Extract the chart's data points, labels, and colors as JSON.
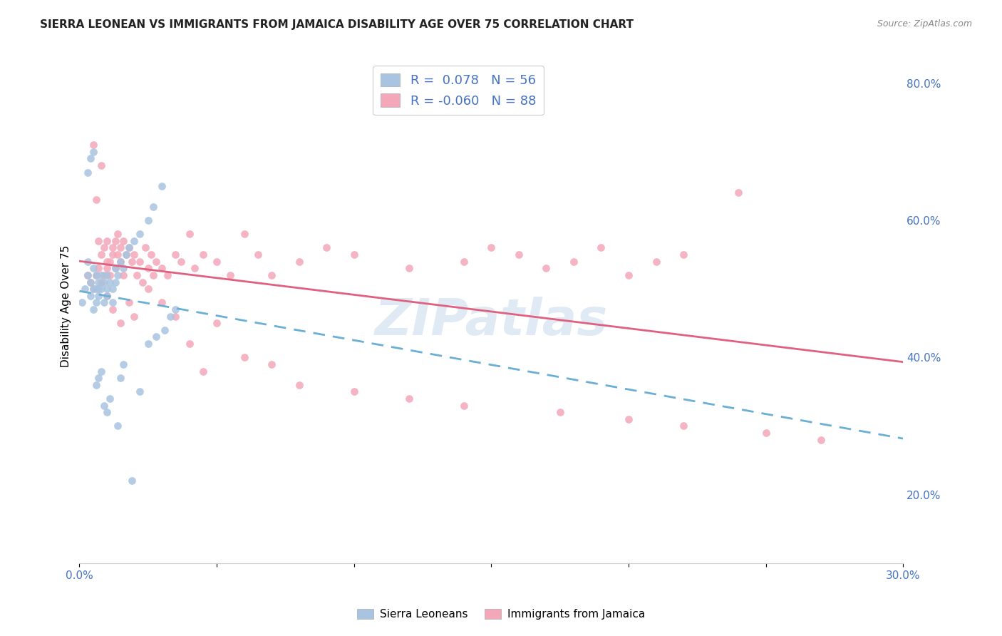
{
  "title": "SIERRA LEONEAN VS IMMIGRANTS FROM JAMAICA DISABILITY AGE OVER 75 CORRELATION CHART",
  "source": "Source: ZipAtlas.com",
  "ylabel": "Disability Age Over 75",
  "right_yticks": [
    "80.0%",
    "60.0%",
    "40.0%",
    "20.0%"
  ],
  "right_ytick_vals": [
    0.8,
    0.6,
    0.4,
    0.2
  ],
  "color_sl": "#a8c4e0",
  "color_sl_line": "#6baed6",
  "color_jam": "#f4a7b9",
  "color_jam_line": "#e06080",
  "watermark": "ZIPatlas",
  "background_color": "#ffffff",
  "sierra_leonean_x": [
    0.001,
    0.002,
    0.003,
    0.003,
    0.004,
    0.004,
    0.005,
    0.005,
    0.005,
    0.006,
    0.006,
    0.006,
    0.007,
    0.007,
    0.007,
    0.008,
    0.008,
    0.009,
    0.009,
    0.01,
    0.01,
    0.01,
    0.011,
    0.012,
    0.012,
    0.013,
    0.013,
    0.014,
    0.015,
    0.016,
    0.017,
    0.018,
    0.02,
    0.022,
    0.025,
    0.027,
    0.03,
    0.003,
    0.004,
    0.005,
    0.006,
    0.007,
    0.008,
    0.009,
    0.01,
    0.011,
    0.014,
    0.015,
    0.016,
    0.019,
    0.022,
    0.025,
    0.028,
    0.031,
    0.033,
    0.035
  ],
  "sierra_leonean_y": [
    0.48,
    0.5,
    0.52,
    0.54,
    0.51,
    0.49,
    0.5,
    0.53,
    0.47,
    0.5,
    0.52,
    0.48,
    0.49,
    0.51,
    0.5,
    0.5,
    0.52,
    0.48,
    0.51,
    0.5,
    0.52,
    0.49,
    0.51,
    0.5,
    0.48,
    0.53,
    0.51,
    0.52,
    0.54,
    0.53,
    0.55,
    0.56,
    0.57,
    0.58,
    0.6,
    0.62,
    0.65,
    0.67,
    0.69,
    0.7,
    0.36,
    0.37,
    0.38,
    0.33,
    0.32,
    0.34,
    0.3,
    0.37,
    0.39,
    0.22,
    0.35,
    0.42,
    0.43,
    0.44,
    0.46,
    0.47
  ],
  "jamaica_x": [
    0.003,
    0.004,
    0.005,
    0.006,
    0.006,
    0.007,
    0.007,
    0.008,
    0.008,
    0.009,
    0.009,
    0.01,
    0.01,
    0.01,
    0.011,
    0.011,
    0.012,
    0.012,
    0.013,
    0.013,
    0.014,
    0.014,
    0.015,
    0.015,
    0.016,
    0.016,
    0.017,
    0.018,
    0.019,
    0.02,
    0.021,
    0.022,
    0.023,
    0.024,
    0.025,
    0.026,
    0.027,
    0.028,
    0.03,
    0.032,
    0.035,
    0.037,
    0.04,
    0.042,
    0.045,
    0.05,
    0.055,
    0.06,
    0.065,
    0.07,
    0.08,
    0.09,
    0.1,
    0.12,
    0.14,
    0.15,
    0.16,
    0.17,
    0.18,
    0.19,
    0.2,
    0.21,
    0.22,
    0.24,
    0.005,
    0.008,
    0.01,
    0.012,
    0.015,
    0.018,
    0.02,
    0.025,
    0.03,
    0.035,
    0.04,
    0.045,
    0.05,
    0.06,
    0.07,
    0.08,
    0.1,
    0.12,
    0.14,
    0.175,
    0.2,
    0.22,
    0.25,
    0.27
  ],
  "jamaica_y": [
    0.52,
    0.51,
    0.5,
    0.63,
    0.52,
    0.57,
    0.53,
    0.55,
    0.51,
    0.52,
    0.56,
    0.53,
    0.54,
    0.57,
    0.52,
    0.54,
    0.56,
    0.55,
    0.57,
    0.53,
    0.55,
    0.58,
    0.54,
    0.56,
    0.52,
    0.57,
    0.55,
    0.56,
    0.54,
    0.55,
    0.52,
    0.54,
    0.51,
    0.56,
    0.53,
    0.55,
    0.52,
    0.54,
    0.53,
    0.52,
    0.55,
    0.54,
    0.58,
    0.53,
    0.55,
    0.54,
    0.52,
    0.58,
    0.55,
    0.52,
    0.54,
    0.56,
    0.55,
    0.53,
    0.54,
    0.56,
    0.55,
    0.53,
    0.54,
    0.56,
    0.52,
    0.54,
    0.55,
    0.64,
    0.71,
    0.68,
    0.49,
    0.47,
    0.45,
    0.48,
    0.46,
    0.5,
    0.48,
    0.46,
    0.42,
    0.38,
    0.45,
    0.4,
    0.39,
    0.36,
    0.35,
    0.34,
    0.33,
    0.32,
    0.31,
    0.3,
    0.29,
    0.28
  ],
  "xlim": [
    0,
    0.3
  ],
  "ylim": [
    0.1,
    0.85
  ]
}
